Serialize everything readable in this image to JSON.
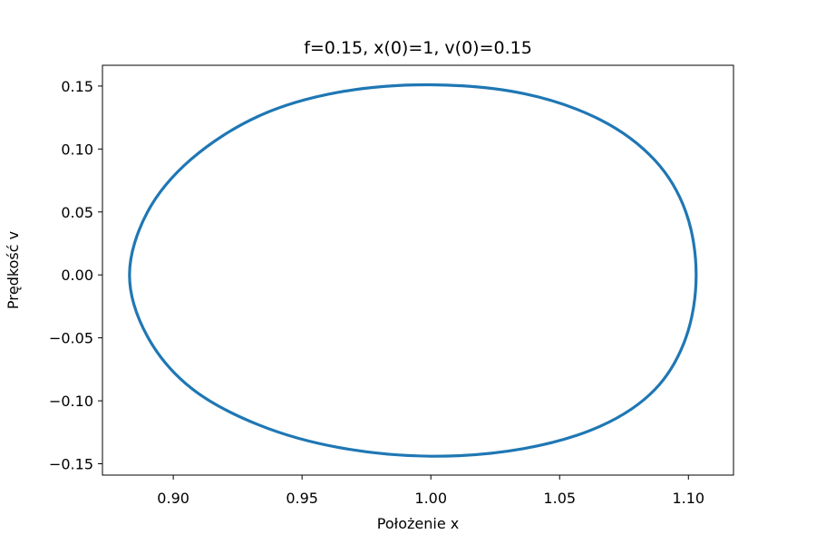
{
  "chart_data": {
    "type": "line",
    "title": "f=0.15, x(0)=1, v(0)=0.15",
    "xlabel": "Położenie x",
    "ylabel": "Prędkość v",
    "xlim": [
      0.8725,
      1.1175
    ],
    "ylim": [
      -0.159,
      0.1665
    ],
    "xticks": [
      0.9,
      0.95,
      1.0,
      1.05,
      1.1
    ],
    "xtick_labels": [
      "0.90",
      "0.95",
      "1.00",
      "1.05",
      "1.10"
    ],
    "yticks": [
      0.15,
      0.1,
      0.05,
      0.0,
      -0.05,
      -0.1,
      -0.15
    ],
    "ytick_labels": [
      "0.15",
      "0.10",
      "0.05",
      "0.00",
      "−0.05",
      "−0.10",
      "−0.15"
    ],
    "grid": false,
    "series": [
      {
        "color": "#1f77b4",
        "x": [
          1.0,
          1.036,
          1.066,
          1.087,
          1.099,
          1.103,
          1.099,
          1.087,
          1.066,
          1.036,
          1.0,
          0.964,
          0.933,
          0.907,
          0.89,
          0.883,
          0.89,
          0.907,
          0.933,
          0.964,
          1.0
        ],
        "y": [
          0.151,
          0.144,
          0.123,
          0.091,
          0.05,
          0.0,
          -0.05,
          -0.091,
          -0.12,
          -0.138,
          -0.144,
          -0.137,
          -0.119,
          -0.09,
          -0.049,
          0.0,
          0.05,
          0.092,
          0.126,
          0.145,
          0.151
        ]
      }
    ]
  }
}
